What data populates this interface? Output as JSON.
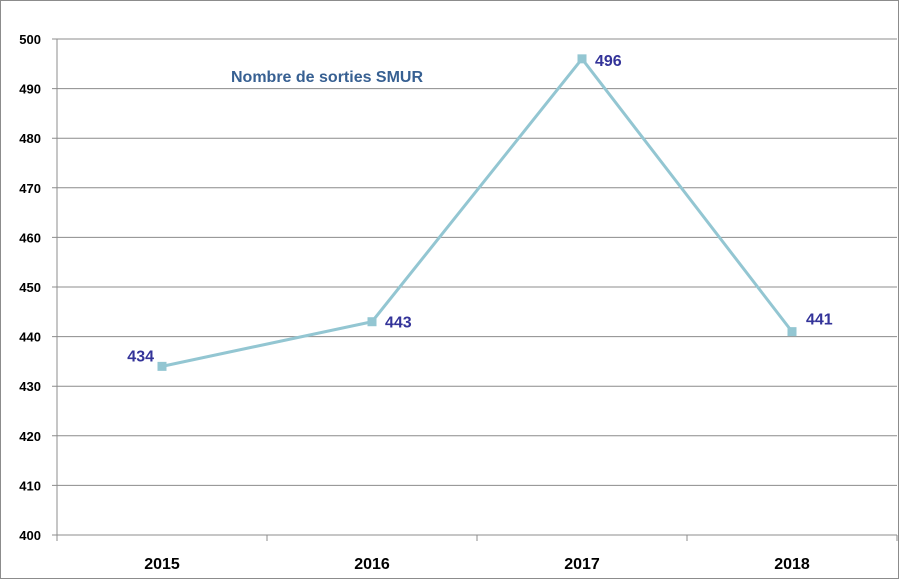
{
  "chart_data": {
    "type": "line",
    "categories": [
      "2015",
      "2016",
      "2017",
      "2018"
    ],
    "series": [
      {
        "name": "Nombre de sorties SMUR",
        "values": [
          434,
          443,
          496,
          441
        ]
      }
    ],
    "data_labels": [
      "434",
      "443",
      "496",
      "441"
    ],
    "yticks": [
      "400",
      "410",
      "420",
      "430",
      "440",
      "450",
      "460",
      "470",
      "480",
      "490",
      "500"
    ],
    "ylim": [
      400,
      500
    ],
    "ystep": 10,
    "grid": true,
    "legend": "inline top-left",
    "colors": {
      "line": "#93c6d2",
      "marker": "#93c6d2",
      "data_label": "#333399",
      "series_label": "#376092",
      "grid": "#8c8c8c",
      "axis": "#8c8c8c"
    }
  }
}
